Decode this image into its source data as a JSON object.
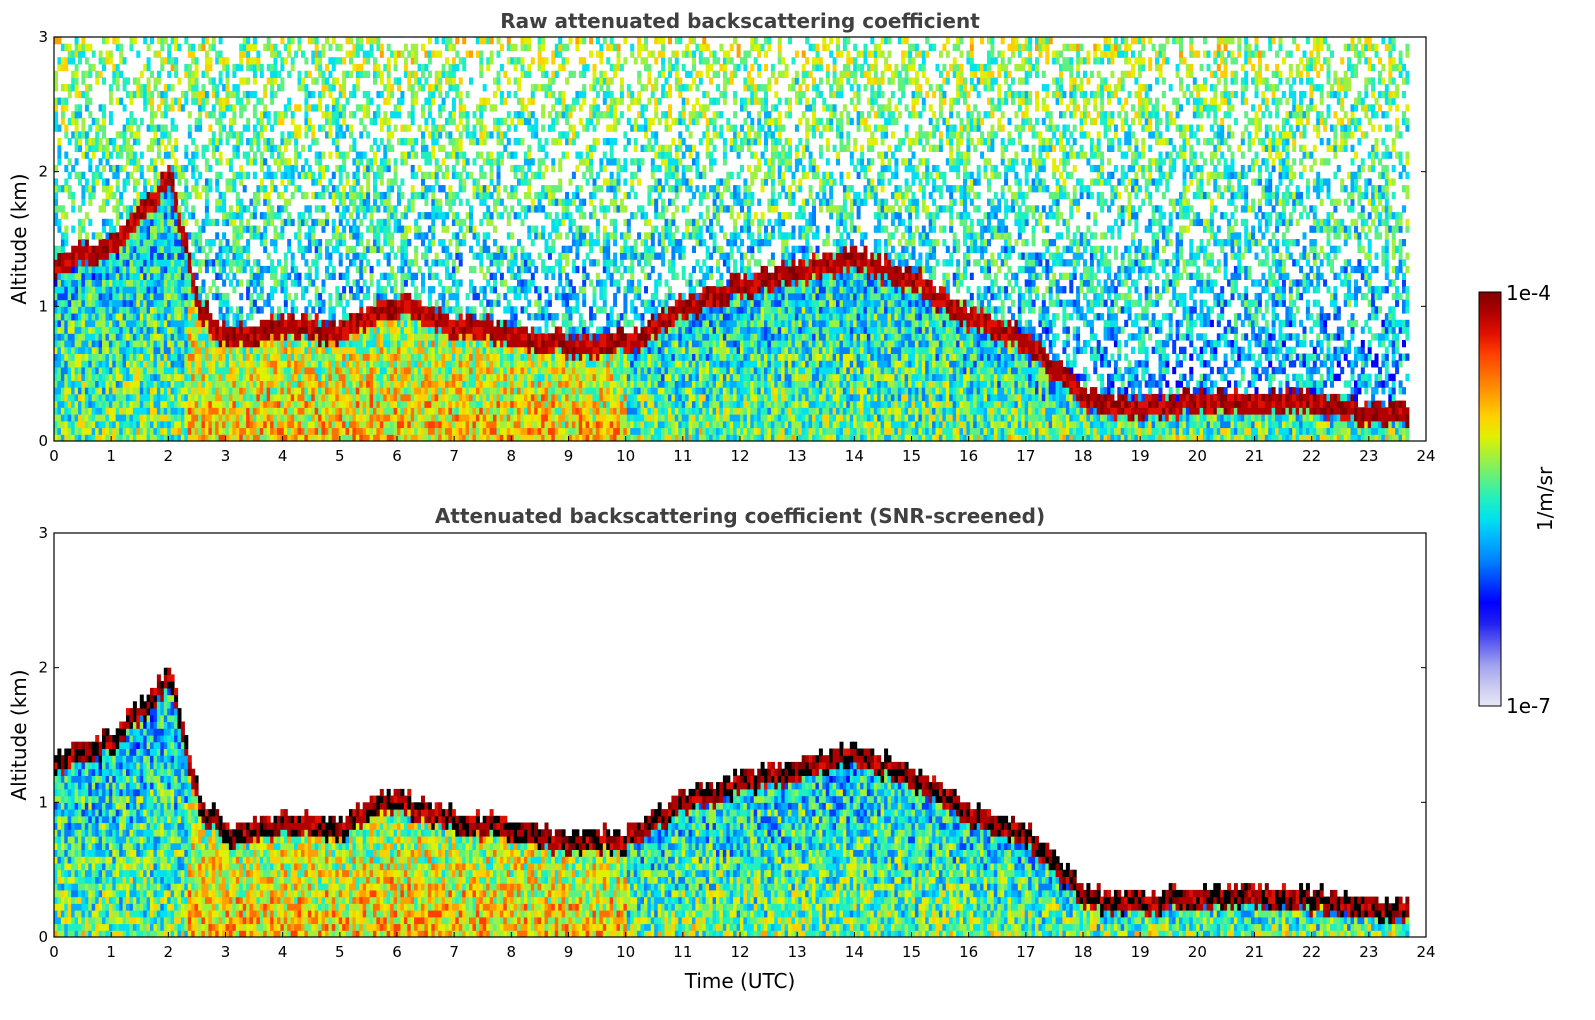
{
  "chart_data": [
    {
      "type": "heatmap",
      "title": "Raw attenuated backscattering coefficient",
      "xlabel": "",
      "ylabel": "Altitude (km)",
      "xlim": [
        0,
        24
      ],
      "ylim": [
        0,
        3
      ],
      "xticks": [
        "0",
        "1",
        "2",
        "3",
        "4",
        "5",
        "6",
        "7",
        "8",
        "9",
        "10",
        "11",
        "12",
        "13",
        "14",
        "15",
        "16",
        "17",
        "18",
        "19",
        "20",
        "21",
        "22",
        "23",
        "24"
      ],
      "yticks": [
        "0",
        "1",
        "2",
        "3"
      ],
      "screened": false,
      "layer_top_km": [
        {
          "t": 0.0,
          "z": 1.3
        },
        {
          "t": 1.0,
          "z": 1.45
        },
        {
          "t": 1.5,
          "z": 1.7
        },
        {
          "t": 2.0,
          "z": 1.95
        },
        {
          "t": 2.5,
          "z": 1.0
        },
        {
          "t": 3.0,
          "z": 0.75
        },
        {
          "t": 4.0,
          "z": 0.85
        },
        {
          "t": 5.0,
          "z": 0.8
        },
        {
          "t": 5.5,
          "z": 0.95
        },
        {
          "t": 6.0,
          "z": 1.0
        },
        {
          "t": 7.0,
          "z": 0.85
        },
        {
          "t": 8.0,
          "z": 0.8
        },
        {
          "t": 9.0,
          "z": 0.7
        },
        {
          "t": 10.0,
          "z": 0.72
        },
        {
          "t": 11.0,
          "z": 1.0
        },
        {
          "t": 12.0,
          "z": 1.15
        },
        {
          "t": 13.0,
          "z": 1.25
        },
        {
          "t": 14.0,
          "z": 1.35
        },
        {
          "t": 15.0,
          "z": 1.2
        },
        {
          "t": 16.0,
          "z": 0.9
        },
        {
          "t": 17.0,
          "z": 0.75
        },
        {
          "t": 18.0,
          "z": 0.3
        },
        {
          "t": 19.0,
          "z": 0.25
        },
        {
          "t": 20.0,
          "z": 0.3
        },
        {
          "t": 21.0,
          "z": 0.3
        },
        {
          "t": 22.0,
          "z": 0.28
        },
        {
          "t": 23.0,
          "z": 0.2
        },
        {
          "t": 23.6,
          "z": 0.2
        }
      ]
    },
    {
      "type": "heatmap",
      "title": "Attenuated backscattering coefficient (SNR-screened)",
      "xlabel": "Time (UTC)",
      "ylabel": "Altitude (km)",
      "xlim": [
        0,
        24
      ],
      "ylim": [
        0,
        3
      ],
      "xticks": [
        "0",
        "1",
        "2",
        "3",
        "4",
        "5",
        "6",
        "7",
        "8",
        "9",
        "10",
        "11",
        "12",
        "13",
        "14",
        "15",
        "16",
        "17",
        "18",
        "19",
        "20",
        "21",
        "22",
        "23",
        "24"
      ],
      "yticks": [
        "0",
        "1",
        "2",
        "3"
      ],
      "screened": true,
      "layer_top_km": [
        {
          "t": 0.0,
          "z": 1.3
        },
        {
          "t": 1.0,
          "z": 1.45
        },
        {
          "t": 1.5,
          "z": 1.7
        },
        {
          "t": 2.0,
          "z": 1.95
        },
        {
          "t": 2.5,
          "z": 1.0
        },
        {
          "t": 3.0,
          "z": 0.75
        },
        {
          "t": 4.0,
          "z": 0.85
        },
        {
          "t": 5.0,
          "z": 0.8
        },
        {
          "t": 5.5,
          "z": 0.95
        },
        {
          "t": 6.0,
          "z": 1.0
        },
        {
          "t": 7.0,
          "z": 0.85
        },
        {
          "t": 8.0,
          "z": 0.8
        },
        {
          "t": 9.0,
          "z": 0.7
        },
        {
          "t": 10.0,
          "z": 0.72
        },
        {
          "t": 11.0,
          "z": 1.0
        },
        {
          "t": 12.0,
          "z": 1.15
        },
        {
          "t": 13.0,
          "z": 1.25
        },
        {
          "t": 14.0,
          "z": 1.35
        },
        {
          "t": 15.0,
          "z": 1.2
        },
        {
          "t": 16.0,
          "z": 0.9
        },
        {
          "t": 17.0,
          "z": 0.75
        },
        {
          "t": 18.0,
          "z": 0.3
        },
        {
          "t": 19.0,
          "z": 0.25
        },
        {
          "t": 20.0,
          "z": 0.3
        },
        {
          "t": 21.0,
          "z": 0.3
        },
        {
          "t": 22.0,
          "z": 0.28
        },
        {
          "t": 23.0,
          "z": 0.2
        },
        {
          "t": 23.6,
          "z": 0.2
        }
      ]
    }
  ],
  "colorbar": {
    "max_label": "1e-4",
    "min_label": "1e-7",
    "unit_label": "1/m/sr",
    "colors": [
      "#e8e8f8",
      "#c8c8f0",
      "#a0a0f0",
      "#6060f0",
      "#2020f0",
      "#0000ff",
      "#0040ff",
      "#0080ff",
      "#00b0ff",
      "#00e0f0",
      "#20f0c0",
      "#60f080",
      "#a0f040",
      "#e0f000",
      "#ffd000",
      "#ffa000",
      "#ff7000",
      "#ff4000",
      "#e01000",
      "#b00000",
      "#800000"
    ]
  }
}
